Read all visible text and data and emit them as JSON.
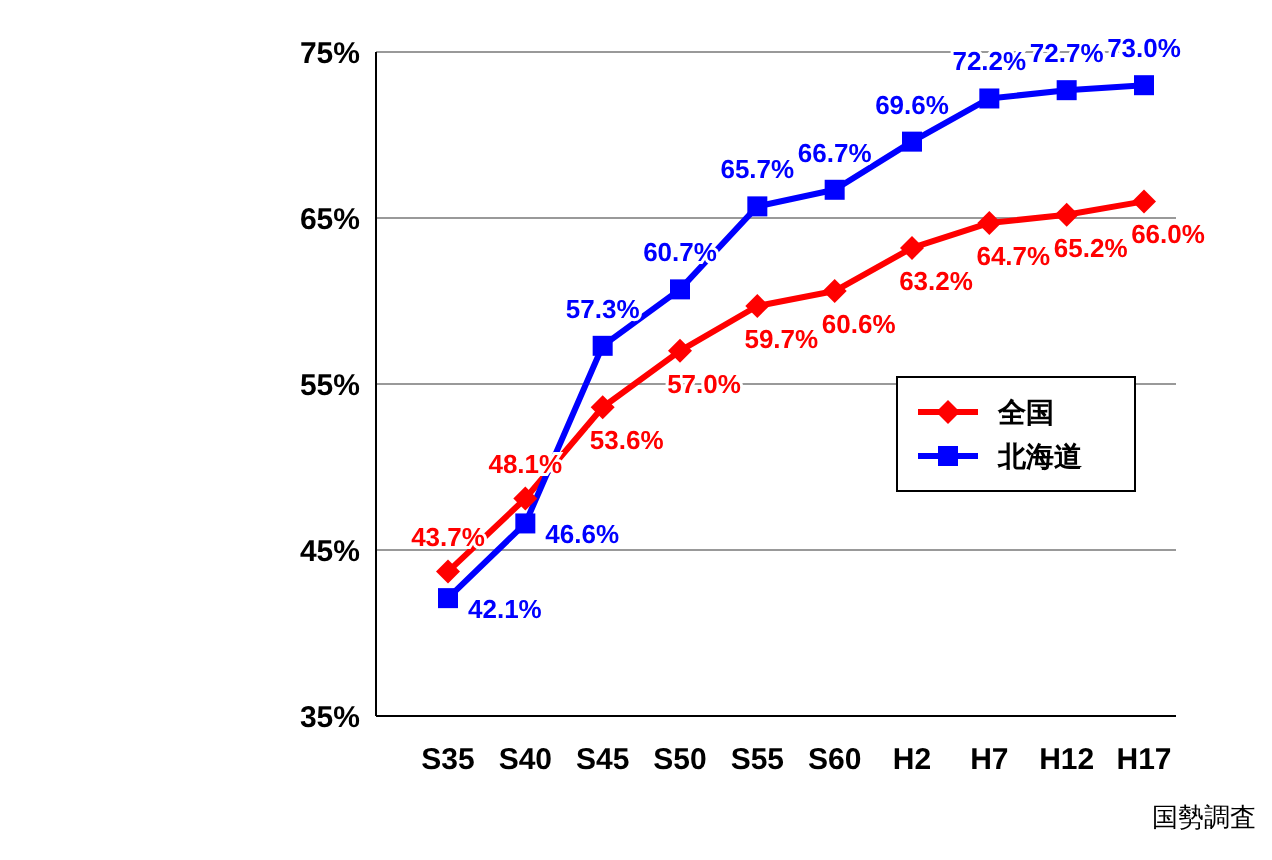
{
  "chart_data": {
    "type": "line",
    "categories": [
      "S35",
      "S40",
      "S45",
      "S50",
      "S55",
      "S60",
      "H2",
      "H7",
      "H12",
      "H17"
    ],
    "series": [
      {
        "name": "全国",
        "color": "#ff0000",
        "values": [
          43.7,
          48.1,
          53.6,
          57.0,
          59.7,
          60.6,
          63.2,
          64.7,
          65.2,
          66.0
        ],
        "value_labels": [
          "43.7%",
          "48.1%",
          "53.6%",
          "57.0%",
          "59.7%",
          "60.6%",
          "63.2%",
          "64.7%",
          "65.2%",
          "66.0%"
        ],
        "marker": "diamond"
      },
      {
        "name": "北海道",
        "color": "#0000ff",
        "values": [
          42.1,
          46.6,
          57.3,
          60.7,
          65.7,
          66.7,
          69.6,
          72.2,
          72.7,
          73.0
        ],
        "value_labels": [
          "42.1%",
          "46.6%",
          "57.3%",
          "60.7%",
          "65.7%",
          "66.7%",
          "69.6%",
          "72.2%",
          "72.7%",
          "73.0%"
        ],
        "marker": "square"
      }
    ],
    "ylim": [
      35,
      75
    ],
    "yticks": [
      {
        "value": 35,
        "label": "35%"
      },
      {
        "value": 45,
        "label": "45%"
      },
      {
        "value": 55,
        "label": "55%"
      },
      {
        "value": 65,
        "label": "65%"
      },
      {
        "value": 75,
        "label": "75%"
      }
    ],
    "grid": "y",
    "legend": "right",
    "line_style": "solid",
    "annotations": [
      "国勢調査"
    ]
  }
}
